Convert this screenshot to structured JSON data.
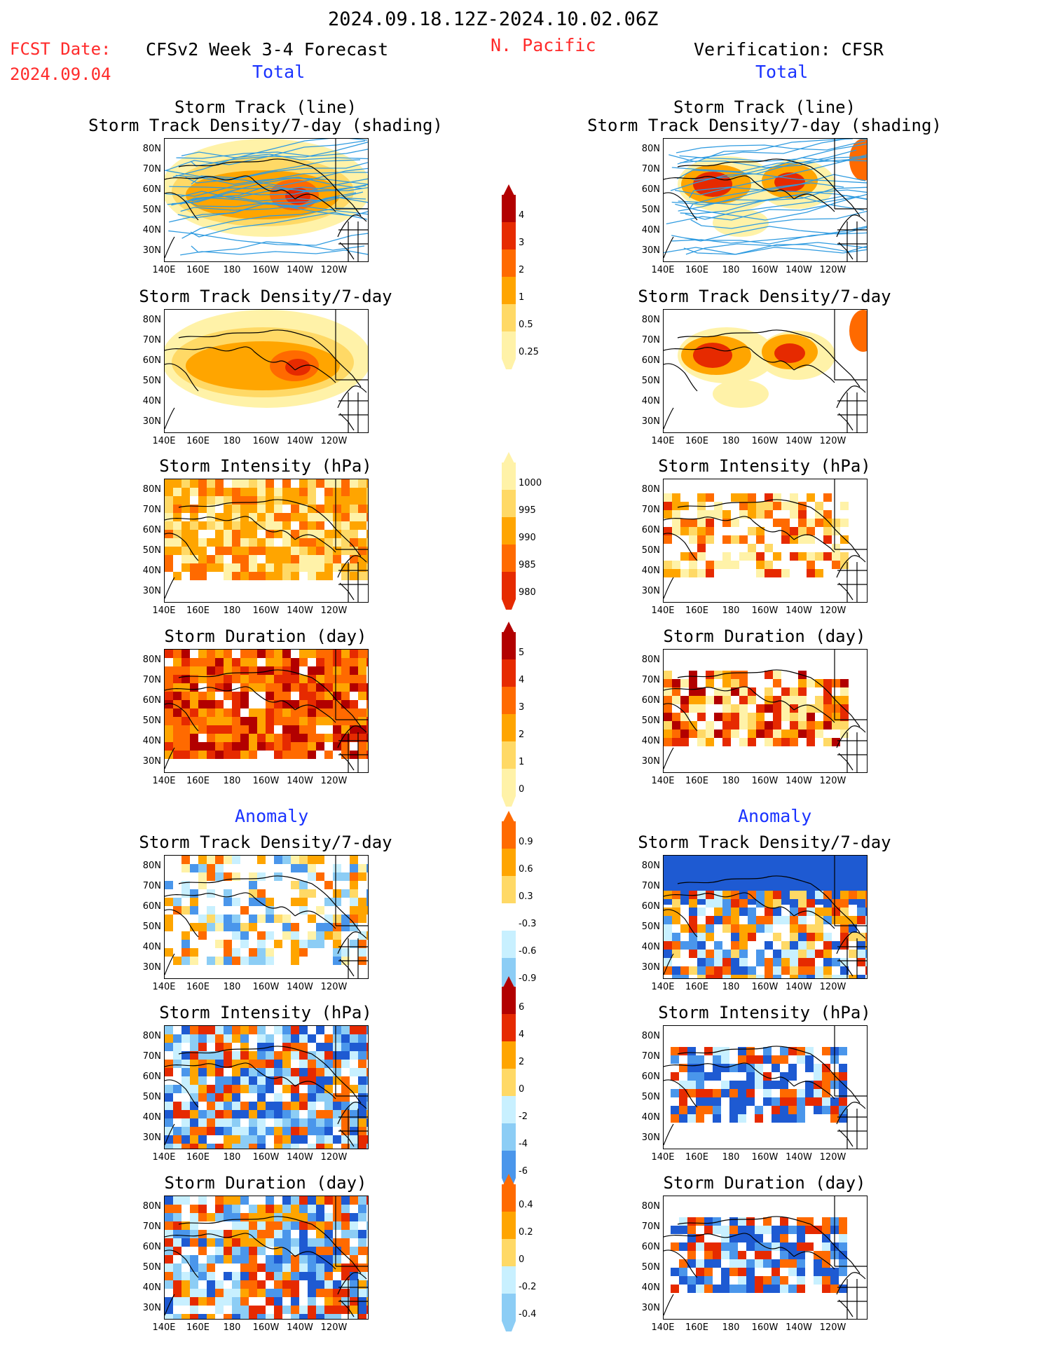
{
  "header": {
    "date_range": "2024.09.18.12Z-2024.10.02.06Z",
    "region": "N. Pacific",
    "fcst_label": "FCST Date:",
    "fcst_date": "2024.09.04",
    "left_title": "CFSv2 Week 3-4 Forecast",
    "right_title": "Verification: CFSR",
    "total_label": "Total",
    "anomaly_label": "Anomaly"
  },
  "panel_titles": {
    "track_line": "Storm Track (line)",
    "track_shading": "Storm Track Density/7-day (shading)",
    "density": "Storm Track Density/7-day",
    "intensity": "Storm Intensity (hPa)",
    "duration": "Storm Duration (day)"
  },
  "axes": {
    "lat_ticks": [
      "80N",
      "70N",
      "60N",
      "50N",
      "40N",
      "30N"
    ],
    "lon_ticks": [
      "140E",
      "160E",
      "180",
      "160W",
      "140W",
      "120W"
    ]
  },
  "colorbars": {
    "density_total": [
      "4",
      "3",
      "2",
      "1",
      "0.5",
      "0.25"
    ],
    "intensity_total": [
      "1000",
      "995",
      "990",
      "985",
      "980"
    ],
    "duration_total": [
      "5",
      "4",
      "3",
      "2",
      "1",
      "0"
    ],
    "density_anom": [
      "0.9",
      "0.6",
      "0.3",
      "-0.3",
      "-0.6",
      "-0.9"
    ],
    "intensity_anom": [
      "6",
      "4",
      "2",
      "0",
      "-2",
      "-4",
      "-6"
    ],
    "duration_anom": [
      "0.4",
      "0.2",
      "0",
      "-0.2",
      "-0.4"
    ]
  },
  "colors": {
    "warm1": "#fff2a8",
    "warm2": "#ffd966",
    "warm3": "#ffa500",
    "warm4": "#ff6a00",
    "warm5": "#e62a00",
    "warm6": "#b20000",
    "cool1": "#c8f0ff",
    "cool2": "#8ccdf5",
    "cool3": "#4a96eb",
    "cool4": "#1e5ad2",
    "track_line": "#2f9be0",
    "region_text": "#ff2a2a",
    "label_blue": "#1a33ff"
  }
}
